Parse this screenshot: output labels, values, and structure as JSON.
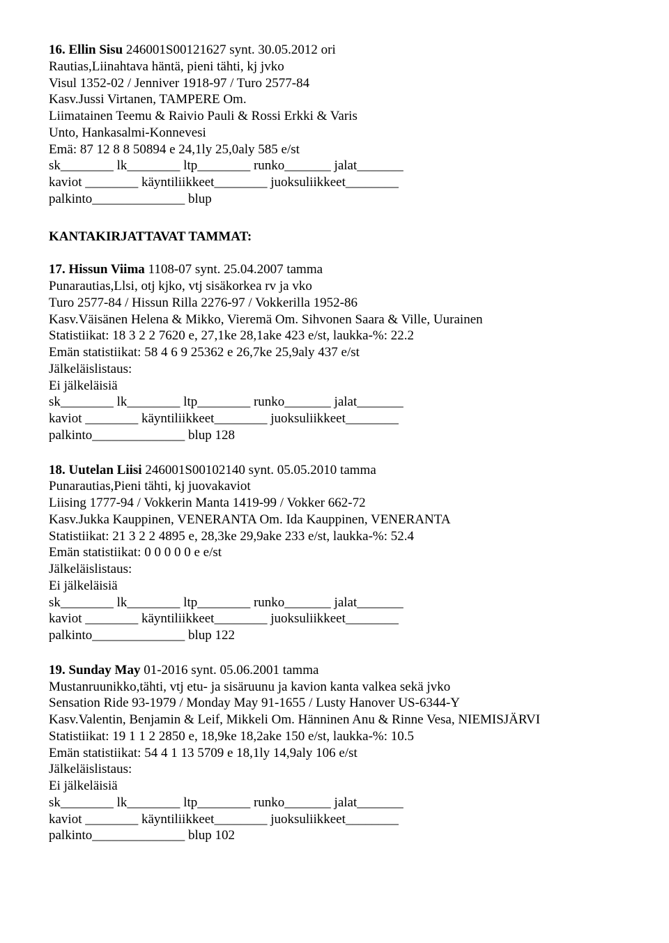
{
  "entry16": {
    "title_bold": "16. Ellin Sisu",
    "title_rest": " 246001S00121627 synt. 30.05.2012 ori",
    "line2": "Rautias,Liinahtava häntä, pieni tähti, kj jvko",
    "line3": "Visul 1352-02 / Jenniver 1918-97 / Turo 2577-84",
    "line4": "Kasv.Jussi Virtanen, TAMPERE Om.",
    "line5": "Liimatainen Teemu & Raivio Pauli & Rossi Erkki & Varis",
    "line6": "Unto, Hankasalmi-Konnevesi",
    "line7": "Emä: 87 12 8 8 50894 e 24,1ly 25,0aly 585 e/st",
    "line8": "sk________ lk________ ltp________ runko_______ jalat_______",
    "line9": "kaviot ________ käyntiliikkeet________ juoksuliikkeet________",
    "line10": "palkinto______________ blup"
  },
  "section_header": "KANTAKIRJATTAVAT TAMMAT:",
  "entry17": {
    "title_bold": "17. Hissun Viima",
    "title_rest": " 1108-07 synt. 25.04.2007 tamma",
    "line2": "Punarautias,Llsi, otj kjko, vtj sisäkorkea rv ja vko",
    "line3": "Turo 2577-84 / Hissun Rilla 2276-97 / Vokkerilla 1952-86",
    "line4": "Kasv.Väisänen Helena & Mikko, Vieremä Om. Sihvonen Saara & Ville, Uurainen",
    "line5": "Statistiikat: 18 3 2 2 7620 e, 27,1ke 28,1ake 423 e/st, laukka-%: 22.2",
    "line6": "Emän statistiikat: 58 4 6 9 25362 e 26,7ke 25,9aly 437 e/st",
    "line7": "Jälkeläislistaus:",
    "line8": "Ei jälkeläisiä",
    "line9": "sk________ lk________ ltp________ runko_______ jalat_______",
    "line10": "kaviot ________ käyntiliikkeet________ juoksuliikkeet________",
    "line11": "palkinto______________ blup 128"
  },
  "entry18": {
    "title_bold": "18. Uutelan Liisi",
    "title_rest": " 246001S00102140 synt. 05.05.2010 tamma",
    "line2": "Punarautias,Pieni tähti, kj juovakaviot",
    "line3": "Liising 1777-94 / Vokkerin Manta 1419-99 / Vokker 662-72",
    "line4": "Kasv.Jukka Kauppinen, VENERANTA Om. Ida Kauppinen, VENERANTA",
    "line5": "Statistiikat: 21 3 2 2 4895 e, 28,3ke 29,9ake 233 e/st, laukka-%: 52.4",
    "line6": "Emän statistiikat: 0 0 0 0 0 e e/st",
    "line7": "Jälkeläislistaus:",
    "line8": "Ei jälkeläisiä",
    "line9": "sk________ lk________ ltp________ runko_______ jalat_______",
    "line10": "kaviot ________ käyntiliikkeet________ juoksuliikkeet________",
    "line11": "palkinto______________ blup 122"
  },
  "entry19": {
    "title_bold": "19. Sunday May",
    "title_rest": " 01-2016 synt. 05.06.2001 tamma",
    "line2": "Mustanruunikko,tähti, vtj etu- ja sisäruunu ja kavion kanta valkea sekä jvko",
    "line3": "Sensation Ride 93-1979 / Monday May 91-1655 / Lusty Hanover US-6344-Y",
    "line4": "Kasv.Valentin, Benjamin & Leif, Mikkeli Om. Hänninen Anu & Rinne Vesa, NIEMISJÄRVI",
    "line5": "Statistiikat: 19 1 1 2 2850 e, 18,9ke 18,2ake 150 e/st, laukka-%: 10.5",
    "line6": "Emän statistiikat: 54 4 1 13 5709 e 18,1ly 14,9aly 106 e/st",
    "line7": "Jälkeläislistaus:",
    "line8": "Ei jälkeläisiä",
    "line9": "sk________ lk________ ltp________ runko_______ jalat_______",
    "line10": "kaviot ________ käyntiliikkeet________ juoksuliikkeet________",
    "line11": "palkinto______________ blup 102"
  }
}
